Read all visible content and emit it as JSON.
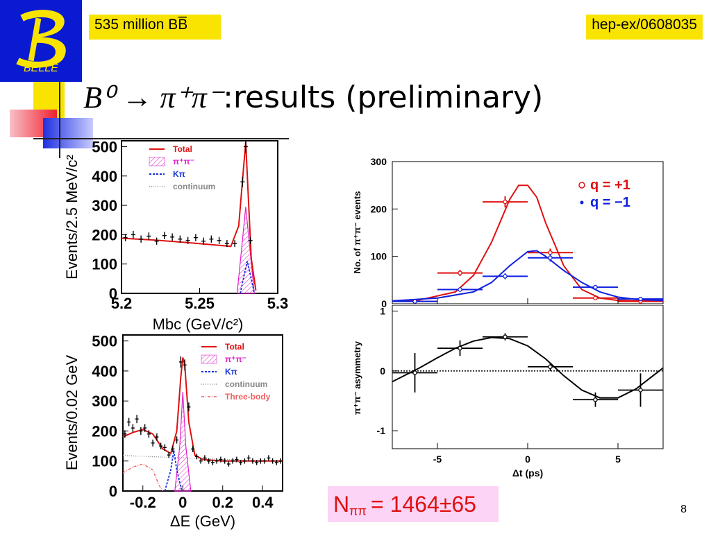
{
  "header": {
    "logo_text": "BELLE",
    "dataset_label": "535 million BB̅",
    "reference": "hep-ex/0608035"
  },
  "title": {
    "math": "B⁰ → π⁺π⁻",
    "text": ":results (preliminary)"
  },
  "yield": {
    "label": "N",
    "subscript": "ππ",
    "value": "= 1464±65"
  },
  "page_number": "8",
  "colors": {
    "total": "#e01010",
    "pipi": "#e020c8",
    "kpi": "#1030e0",
    "continuum": "#888888",
    "threebody": "#f06060",
    "q_plus": "#e01010",
    "q_minus": "#1020e0",
    "logo_bg": "#0a1ad0",
    "highlight": "#f8e400"
  },
  "chart_data": [
    {
      "id": "mbc",
      "type": "line",
      "xlabel": "Mbc (GeV/c²)",
      "ylabel": "Events/2.5 MeV/c²",
      "xlim": [
        5.2,
        5.3
      ],
      "ylim": [
        0,
        520
      ],
      "xticks": [
        "5.2",
        "5.25",
        "5.3"
      ],
      "yticks": [
        "0",
        "100",
        "200",
        "300",
        "400",
        "500"
      ],
      "legend": [
        "Total",
        "π⁺π⁻",
        "Kπ",
        "continuum"
      ],
      "legend_position": "top-left",
      "data_x": [
        5.2025,
        5.2075,
        5.2125,
        5.2175,
        5.2225,
        5.2275,
        5.2325,
        5.2375,
        5.2425,
        5.2475,
        5.2525,
        5.2575,
        5.2625,
        5.2675,
        5.2725,
        5.2775,
        5.2795,
        5.2825
      ],
      "data_y": [
        190,
        200,
        185,
        195,
        178,
        197,
        192,
        185,
        180,
        190,
        178,
        185,
        180,
        170,
        170,
        380,
        500,
        180
      ],
      "total_x": [
        5.2,
        5.22,
        5.24,
        5.26,
        5.27,
        5.275,
        5.278,
        5.2795,
        5.281,
        5.283,
        5.286
      ],
      "total_y": [
        188,
        182,
        174,
        165,
        160,
        230,
        420,
        515,
        350,
        120,
        10
      ],
      "pipi_x": [
        5.274,
        5.277,
        5.2795,
        5.282,
        5.285
      ],
      "pipi_y": [
        0,
        160,
        295,
        160,
        0
      ],
      "kpi_x": [
        5.276,
        5.278,
        5.2805,
        5.283,
        5.285
      ],
      "kpi_y": [
        0,
        50,
        110,
        50,
        0
      ]
    },
    {
      "id": "de",
      "type": "line",
      "xlabel": "ΔE (GeV)",
      "ylabel": "Events/0.02 GeV",
      "xlim": [
        -0.3,
        0.5
      ],
      "ylim": [
        0,
        520
      ],
      "xticks": [
        "-0.2",
        "0",
        "0.2",
        "0.4"
      ],
      "yticks": [
        "0",
        "100",
        "200",
        "300",
        "400",
        "500"
      ],
      "legend": [
        "Total",
        "π⁺π⁻",
        "Kπ",
        "continuum",
        "Three-body"
      ],
      "legend_position": "top-right",
      "data_x": [
        -0.29,
        -0.27,
        -0.25,
        -0.23,
        -0.21,
        -0.19,
        -0.17,
        -0.15,
        -0.13,
        -0.11,
        -0.09,
        -0.07,
        -0.05,
        -0.03,
        -0.01,
        0.01,
        0.03,
        0.05,
        0.07,
        0.09,
        0.11,
        0.13,
        0.15,
        0.17,
        0.19,
        0.21,
        0.23,
        0.25,
        0.27,
        0.29,
        0.31,
        0.33,
        0.35,
        0.37,
        0.39,
        0.41,
        0.43,
        0.45,
        0.47,
        0.49
      ],
      "data_y": [
        190,
        230,
        210,
        240,
        200,
        210,
        190,
        160,
        180,
        150,
        145,
        120,
        140,
        170,
        430,
        420,
        280,
        140,
        115,
        100,
        110,
        100,
        95,
        100,
        105,
        100,
        90,
        100,
        105,
        95,
        100,
        110,
        100,
        95,
        100,
        100,
        110,
        100,
        95,
        100
      ],
      "total_x": [
        -0.3,
        -0.25,
        -0.2,
        -0.15,
        -0.1,
        -0.06,
        -0.03,
        -0.01,
        0.0,
        0.01,
        0.03,
        0.06,
        0.1,
        0.2,
        0.3,
        0.4,
        0.5
      ],
      "total_y": [
        180,
        195,
        205,
        190,
        140,
        125,
        200,
        380,
        445,
        420,
        230,
        120,
        105,
        100,
        100,
        100,
        100
      ],
      "pipi_x": [
        -0.04,
        -0.015,
        0.0,
        0.015,
        0.04
      ],
      "pipi_y": [
        0,
        150,
        330,
        150,
        0
      ],
      "kpi_x": [
        -0.09,
        -0.06,
        -0.045,
        -0.03,
        -0.005
      ],
      "kpi_y": [
        0,
        70,
        135,
        70,
        0
      ],
      "continuum_x": [
        -0.3,
        0.5
      ],
      "continuum_y": [
        118,
        98
      ],
      "threebody_x": [
        -0.3,
        -0.25,
        -0.2,
        -0.15,
        -0.12,
        -0.1
      ],
      "threebody_y": [
        60,
        80,
        90,
        70,
        20,
        0
      ]
    },
    {
      "id": "dt",
      "type": "line",
      "xlabel": "",
      "ylabel": "No. of π⁺π⁻ events",
      "xlim": [
        -7.5,
        7.5
      ],
      "ylim": [
        0,
        300
      ],
      "yticks": [
        "0",
        "100",
        "200",
        "300"
      ],
      "legend": [
        "q = +1",
        "q = −1"
      ],
      "legend_position": "top-right",
      "series": [
        {
          "name": "q = +1",
          "x": [
            -6.25,
            -3.75,
            -1.25,
            1.25,
            3.75,
            6.25
          ],
          "y": [
            5,
            65,
            215,
            108,
            12,
            5
          ],
          "xerr": 1.25,
          "curve_x": [
            -7.5,
            -6,
            -4,
            -3,
            -2,
            -1,
            -0.5,
            0,
            0.5,
            1,
            2,
            3,
            4,
            5,
            6,
            7.5
          ],
          "curve_y": [
            6,
            8,
            25,
            60,
            130,
            220,
            250,
            250,
            225,
            170,
            80,
            30,
            12,
            7,
            6,
            6
          ]
        },
        {
          "name": "q = −1",
          "x": [
            -6.25,
            -3.75,
            -1.25,
            1.25,
            3.75,
            6.25
          ],
          "y": [
            5,
            30,
            58,
            97,
            35,
            10
          ],
          "xerr": 1.25,
          "curve_x": [
            -7.5,
            -5,
            -3,
            -2,
            -1,
            0,
            0.5,
            1,
            2,
            3,
            4,
            5,
            6,
            7.5
          ],
          "curve_y": [
            6,
            12,
            25,
            45,
            80,
            110,
            112,
            100,
            70,
            45,
            25,
            14,
            9,
            7
          ]
        }
      ]
    },
    {
      "id": "asym",
      "type": "line",
      "xlabel": "Δt (ps)",
      "ylabel": "π⁺π⁻ asymmetry",
      "xlim": [
        -7.5,
        7.5
      ],
      "ylim": [
        -1.3,
        1.1
      ],
      "xticks": [
        "-5",
        "0",
        "5"
      ],
      "yticks": [
        "-1",
        "0",
        "1"
      ],
      "x": [
        -6.25,
        -3.75,
        -1.25,
        1.25,
        3.75,
        6.25
      ],
      "y": [
        -0.03,
        0.38,
        0.57,
        0.07,
        -0.48,
        -0.32
      ],
      "yerr": [
        0.33,
        0.13,
        0.06,
        0.07,
        0.12,
        0.28
      ],
      "xerr": 1.25,
      "curve_x": [
        -7.5,
        -6,
        -5,
        -4,
        -3,
        -2,
        -1,
        0,
        1,
        2,
        3,
        4,
        5,
        6,
        7.5
      ],
      "curve_y": [
        -0.18,
        0.05,
        0.22,
        0.38,
        0.5,
        0.56,
        0.54,
        0.42,
        0.2,
        -0.08,
        -0.32,
        -0.45,
        -0.45,
        -0.3,
        0.05
      ]
    }
  ]
}
